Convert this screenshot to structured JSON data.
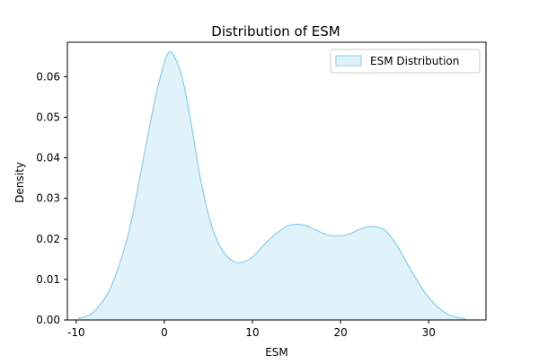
{
  "chart_data": {
    "type": "area",
    "title": "Distribution of ESM",
    "xlabel": "ESM",
    "ylabel": "Density",
    "xlim": [
      -11,
      36.5
    ],
    "ylim": [
      0,
      0.0685
    ],
    "xticks": [
      -10,
      0,
      10,
      20,
      30
    ],
    "yticks": [
      0.0,
      0.01,
      0.02,
      0.03,
      0.04,
      0.05,
      0.06
    ],
    "ytick_labels": [
      "0.00",
      "0.01",
      "0.02",
      "0.03",
      "0.04",
      "0.05",
      "0.06"
    ],
    "grid": false,
    "legend_position": "top-right",
    "series": [
      {
        "name": "ESM Distribution",
        "color": "#87CEEB",
        "fill": "#87CEEB",
        "fill_opacity": 0.25,
        "x": [
          -9.8,
          -8,
          -6,
          -4,
          -2,
          -1,
          0,
          0.5,
          1,
          2,
          3,
          4,
          5,
          6,
          7,
          8,
          9,
          10,
          11,
          12,
          13,
          14,
          15,
          16,
          17,
          18,
          19,
          20,
          21,
          22,
          23,
          24,
          25,
          26,
          27,
          28,
          30,
          32,
          34.2
        ],
        "y": [
          0.0004,
          0.002,
          0.0085,
          0.022,
          0.044,
          0.055,
          0.0635,
          0.066,
          0.0655,
          0.06,
          0.049,
          0.036,
          0.026,
          0.0195,
          0.016,
          0.0143,
          0.0143,
          0.0155,
          0.0178,
          0.02,
          0.0218,
          0.0232,
          0.0236,
          0.0233,
          0.0224,
          0.0214,
          0.0208,
          0.0208,
          0.0212,
          0.0222,
          0.0229,
          0.023,
          0.0222,
          0.0196,
          0.0162,
          0.0122,
          0.0055,
          0.0016,
          0.0002
        ]
      }
    ]
  }
}
